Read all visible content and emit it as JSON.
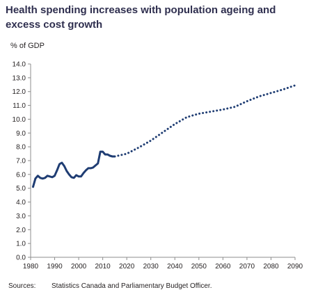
{
  "chart_data": {
    "type": "line",
    "title": "Health spending increases with population ageing and excess cost growth",
    "ylabel": "% of GDP",
    "xlabel": "",
    "xlim": [
      1980,
      2090
    ],
    "ylim": [
      0,
      14
    ],
    "x_ticks": [
      "1980",
      "1990",
      "2000",
      "2010",
      "2020",
      "2030",
      "2040",
      "2050",
      "2060",
      "2070",
      "2080",
      "2090"
    ],
    "y_ticks": [
      "0.0",
      "1.0",
      "2.0",
      "3.0",
      "4.0",
      "5.0",
      "6.0",
      "7.0",
      "8.0",
      "9.0",
      "10.0",
      "11.0",
      "12.0",
      "13.0",
      "14.0"
    ],
    "grid": false,
    "legend": "none",
    "series": [
      {
        "style": "solid",
        "color": "#1f3d73",
        "points": [
          [
            1981,
            5.1
          ],
          [
            1982,
            5.7
          ],
          [
            1983,
            5.9
          ],
          [
            1984,
            5.75
          ],
          [
            1985,
            5.7
          ],
          [
            1986,
            5.75
          ],
          [
            1987,
            5.9
          ],
          [
            1988,
            5.85
          ],
          [
            1989,
            5.8
          ],
          [
            1990,
            5.9
          ],
          [
            1991,
            6.3
          ],
          [
            1992,
            6.75
          ],
          [
            1993,
            6.85
          ],
          [
            1994,
            6.6
          ],
          [
            1995,
            6.25
          ],
          [
            1996,
            6.0
          ],
          [
            1997,
            5.8
          ],
          [
            1998,
            5.75
          ],
          [
            1999,
            5.95
          ],
          [
            2000,
            5.85
          ],
          [
            2001,
            5.85
          ],
          [
            2002,
            6.1
          ],
          [
            2003,
            6.3
          ],
          [
            2004,
            6.45
          ],
          [
            2005,
            6.45
          ],
          [
            2006,
            6.5
          ],
          [
            2007,
            6.65
          ],
          [
            2008,
            6.8
          ],
          [
            2009,
            7.65
          ],
          [
            2010,
            7.65
          ],
          [
            2011,
            7.45
          ],
          [
            2012,
            7.45
          ],
          [
            2013,
            7.35
          ],
          [
            2014,
            7.3
          ],
          [
            2015,
            7.3
          ]
        ]
      },
      {
        "style": "dotted",
        "color": "#1f3d73",
        "points": [
          [
            2015,
            7.3
          ],
          [
            2020,
            7.5
          ],
          [
            2025,
            7.95
          ],
          [
            2030,
            8.45
          ],
          [
            2035,
            9.05
          ],
          [
            2040,
            9.65
          ],
          [
            2045,
            10.15
          ],
          [
            2050,
            10.4
          ],
          [
            2055,
            10.55
          ],
          [
            2060,
            10.7
          ],
          [
            2065,
            10.9
          ],
          [
            2070,
            11.3
          ],
          [
            2075,
            11.65
          ],
          [
            2080,
            11.9
          ],
          [
            2085,
            12.15
          ],
          [
            2090,
            12.45
          ]
        ]
      }
    ],
    "source_label": "Sources:",
    "source_text": "Statistics Canada and Parliamentary Budget Officer."
  }
}
